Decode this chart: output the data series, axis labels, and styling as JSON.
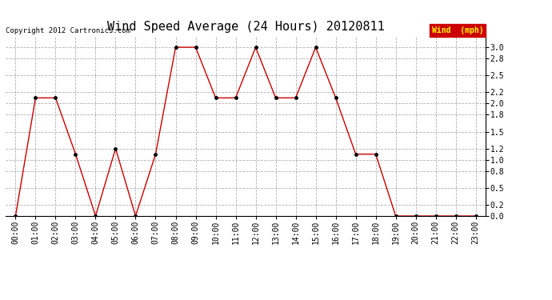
{
  "title": "Wind Speed Average (24 Hours) 20120811",
  "copyright_text": "Copyright 2012 Cartronics.com",
  "legend_label": "Wind  (mph)",
  "hours": [
    "00:00",
    "01:00",
    "02:00",
    "03:00",
    "04:00",
    "05:00",
    "06:00",
    "07:00",
    "08:00",
    "09:00",
    "10:00",
    "11:00",
    "12:00",
    "13:00",
    "14:00",
    "15:00",
    "16:00",
    "17:00",
    "18:00",
    "19:00",
    "20:00",
    "21:00",
    "22:00",
    "23:00"
  ],
  "values": [
    0.0,
    2.1,
    2.1,
    1.1,
    0.0,
    1.2,
    0.0,
    1.1,
    3.0,
    3.0,
    2.1,
    2.1,
    3.0,
    2.1,
    2.1,
    3.0,
    2.1,
    1.1,
    1.1,
    0.0,
    0.0,
    0.0,
    0.0,
    0.0
  ],
  "line_color": "#cc0000",
  "marker_color": "#000000",
  "bg_color": "#ffffff",
  "grid_color": "#b0b0b0",
  "title_fontsize": 11,
  "tick_fontsize": 7,
  "ylim": [
    0.0,
    3.2
  ],
  "yticks": [
    0.0,
    0.2,
    0.5,
    0.8,
    1.0,
    1.2,
    1.5,
    1.8,
    2.0,
    2.2,
    2.5,
    2.8,
    3.0
  ],
  "legend_bg": "#cc0000",
  "legend_text_color": "#ffff00"
}
